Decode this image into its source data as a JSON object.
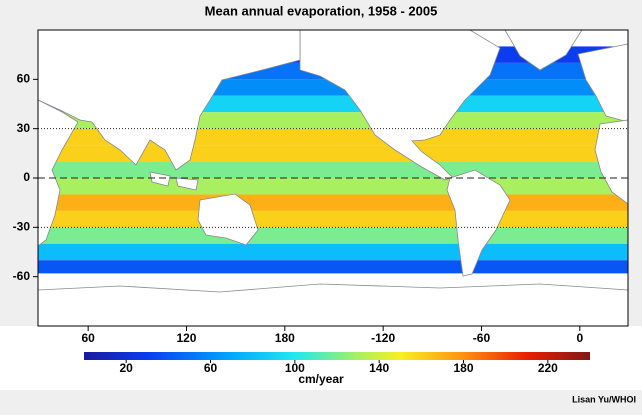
{
  "chart_data": {
    "type": "map",
    "title": "Mean annual evaporation, 1958 - 2005",
    "xlim": [
      29.4,
      389.4
    ],
    "xticks": [
      60,
      120,
      180,
      {
        "value": 240,
        "label": "-120"
      },
      {
        "value": 300,
        "label": "-60"
      },
      {
        "value": 360,
        "label": "0"
      }
    ],
    "ylim": [
      -90,
      90
    ],
    "yticks": [
      60,
      30,
      0,
      -30,
      -60
    ],
    "reference_lines": [
      {
        "lat": 30,
        "style": "dotted"
      },
      {
        "lat": 0,
        "style": "dashed"
      },
      {
        "lat": -30,
        "style": "dotted"
      }
    ],
    "band_edges": [
      80,
      70,
      60,
      50,
      40,
      30,
      20,
      10,
      0,
      -10,
      -20,
      -30,
      -40,
      -50,
      -58
    ],
    "band_values": [
      30,
      50,
      60,
      90,
      130,
      160,
      160,
      120,
      130,
      170,
      160,
      120,
      80,
      40
    ],
    "colorbar": {
      "lim": [
        0,
        240
      ],
      "ticks": [
        20,
        60,
        100,
        140,
        180,
        220
      ],
      "label": "cm/year",
      "colormap": [
        {
          "value": 0,
          "color": "#1a1a9c"
        },
        {
          "value": 30,
          "color": "#0a3cf0"
        },
        {
          "value": 70,
          "color": "#00a8ff"
        },
        {
          "value": 100,
          "color": "#20e8f0"
        },
        {
          "value": 130,
          "color": "#a8f060"
        },
        {
          "value": 150,
          "color": "#f8f020"
        },
        {
          "value": 180,
          "color": "#ff9010"
        },
        {
          "value": 210,
          "color": "#e82000"
        },
        {
          "value": 240,
          "color": "#801818"
        }
      ]
    },
    "credit": "Lisan Yu/WHOI"
  }
}
